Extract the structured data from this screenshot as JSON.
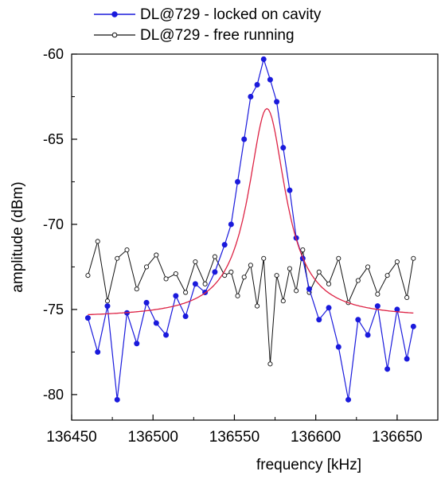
{
  "chart_data": {
    "type": "line",
    "xlabel": "frequency [kHz]",
    "ylabel": "amplitude (dBm)",
    "xlim": [
      136450,
      136675
    ],
    "ylim": [
      -81.5,
      -60
    ],
    "xticks": [
      136450,
      136500,
      136550,
      136600,
      136650
    ],
    "xtick_labels": [
      "136450",
      "136500",
      "136550",
      "136600",
      "136650"
    ],
    "yticks": [
      -60,
      -65,
      -70,
      -75,
      -80
    ],
    "ytick_labels": [
      "-60",
      "-65",
      "-70",
      "-75",
      "-80"
    ],
    "grid": false,
    "legend_position": "top",
    "x": [
      136460,
      136466,
      136472,
      136478,
      136484,
      136490,
      136496,
      136502,
      136508,
      136514,
      136520,
      136526,
      136532,
      136538,
      136544,
      136548,
      136552,
      136556,
      136560,
      136564,
      136568,
      136572,
      136576,
      136580,
      136584,
      136588,
      136592,
      136596,
      136602,
      136608,
      136614,
      136620,
      136626,
      136632,
      136638,
      136644,
      136650,
      136656,
      136660
    ],
    "series": [
      {
        "name": "DL@729 - locked on cavity",
        "color": "#1a1adc",
        "marker": "filled-circle",
        "values": [
          -75.5,
          -77.5,
          -74.8,
          -80.3,
          -75.2,
          -77.0,
          -74.6,
          -75.8,
          -76.5,
          -74.2,
          -75.4,
          -73.5,
          -74.0,
          -72.8,
          -71.2,
          -70.0,
          -67.5,
          -65.0,
          -62.5,
          -61.8,
          -60.3,
          -61.5,
          -62.8,
          -65.5,
          -68.0,
          -70.8,
          -72.0,
          -73.8,
          -75.6,
          -74.9,
          -77.2,
          -80.3,
          -75.6,
          -76.5,
          -74.8,
          -78.5,
          -75.0,
          -77.9,
          -76.0
        ]
      },
      {
        "name": "DL@729 - free running",
        "color": "#111111",
        "marker": "open-circle",
        "values": [
          -73.0,
          -71.0,
          -74.5,
          -72.0,
          -71.5,
          -73.8,
          -72.5,
          -71.8,
          -73.2,
          -72.9,
          -74.0,
          -72.2,
          -73.5,
          -71.9,
          -73.0,
          -72.8,
          -74.2,
          -73.1,
          -72.4,
          -74.8,
          -72.0,
          -78.2,
          -73.0,
          -74.5,
          -72.6,
          -73.9,
          -71.5,
          -74.0,
          -72.8,
          -73.5,
          -72.0,
          -74.6,
          -73.3,
          -72.5,
          -74.1,
          -73.0,
          -72.2,
          -74.3,
          -72.0
        ]
      }
    ],
    "fit": {
      "name": "",
      "color": "#dd2244",
      "center": 136570,
      "fwhm": 28,
      "baseline": -75.5,
      "peak": -63.2
    }
  }
}
